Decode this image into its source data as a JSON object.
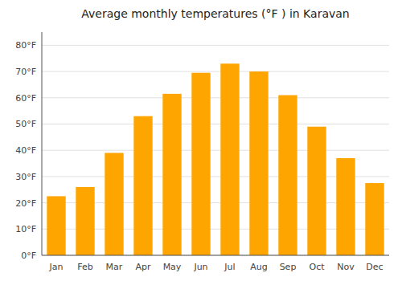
{
  "chart_data": {
    "type": "bar",
    "title": "Average monthly temperatures (°F ) in Karavan",
    "categories": [
      "Jan",
      "Feb",
      "Mar",
      "Apr",
      "May",
      "Jun",
      "Jul",
      "Aug",
      "Sep",
      "Oct",
      "Nov",
      "Dec"
    ],
    "values": [
      22.5,
      26,
      39,
      53,
      61.5,
      69.5,
      73,
      70,
      61,
      49,
      37,
      27.5
    ],
    "color": "#FFA500",
    "ylim": [
      0,
      85
    ],
    "yticks": [
      {
        "value": 0,
        "label": "0°F"
      },
      {
        "value": 10,
        "label": "10°F"
      },
      {
        "value": 20,
        "label": "20°F"
      },
      {
        "value": 30,
        "label": "30°F"
      },
      {
        "value": 40,
        "label": "40°F"
      },
      {
        "value": 50,
        "label": "50°F"
      },
      {
        "value": 60,
        "label": "60°F"
      },
      {
        "value": 70,
        "label": "70°F"
      },
      {
        "value": 80,
        "label": "80°F"
      }
    ],
    "grid": true
  }
}
